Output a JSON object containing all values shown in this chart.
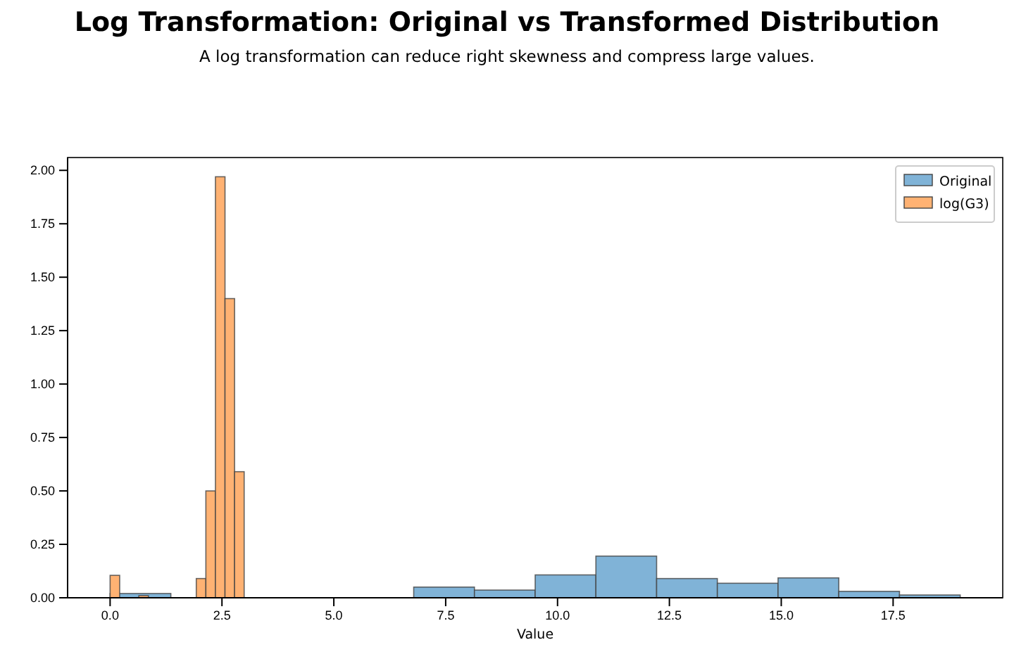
{
  "chart_data": {
    "type": "bar",
    "title": "Log Transformation: Original vs Transformed Distribution",
    "subtitle": "A log transformation can reduce right skewness and compress large values.",
    "xlabel": "Value",
    "series": [
      {
        "name": "Original",
        "color": "#80b3d7",
        "x": [
          0.679,
          2.036,
          3.393,
          null,
          null,
          7.464,
          8.821,
          10.179,
          11.536,
          12.893,
          14.25,
          15.607,
          16.964,
          18.321
        ],
        "values": [
          0.02,
          0,
          0,
          null,
          null,
          0.05,
          0.036,
          0.107,
          0.195,
          0.09,
          0.068,
          0.093,
          0.03,
          0.013
        ]
      },
      {
        "name": "log(G3)",
        "color": "#ffb273",
        "x": [
          0.107,
          0.321,
          0.535,
          0.749,
          0.963,
          1.177,
          1.391,
          1.605,
          null,
          2.033,
          2.247,
          2.461,
          2.675,
          2.889
        ],
        "values": [
          0.105,
          0,
          0,
          0.01,
          0,
          0,
          0,
          0,
          null,
          0.09,
          0.5,
          1.97,
          1.4,
          0.59
        ]
      }
    ],
    "xlim": [
      -0.95,
      19.95
    ],
    "xticks": [
      {
        "value": 0,
        "label": "0.0"
      },
      {
        "value": 2.5,
        "label": "2.5"
      },
      {
        "value": 5,
        "label": "5.0"
      },
      {
        "value": 7.5,
        "label": "7.5"
      },
      {
        "value": 10,
        "label": "10.0"
      },
      {
        "value": 12.5,
        "label": "12.5"
      },
      {
        "value": 15,
        "label": "15.0"
      },
      {
        "value": 17.5,
        "label": "17.5"
      }
    ],
    "ylim": [
      0,
      2.06
    ],
    "yticks": [
      {
        "value": 0,
        "label": "0.00"
      },
      {
        "value": 0.25,
        "label": "0.25"
      },
      {
        "value": 0.5,
        "label": "0.50"
      },
      {
        "value": 0.75,
        "label": "0.75"
      },
      {
        "value": 1,
        "label": "1.00"
      },
      {
        "value": 1.25,
        "label": "1.25"
      },
      {
        "value": 1.5,
        "label": "1.50"
      },
      {
        "value": 1.75,
        "label": "1.75"
      },
      {
        "value": 2,
        "label": "2.00"
      }
    ],
    "legend": "top right",
    "grid": false
  }
}
